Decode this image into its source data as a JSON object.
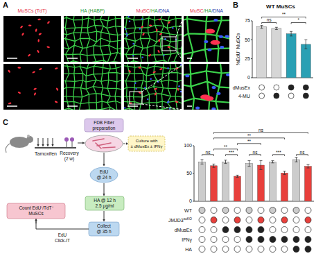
{
  "panels": {
    "a": "A",
    "b": "B",
    "c": "C"
  },
  "panel_a": {
    "headers": [
      [
        {
          "text": "MuSCs (TdT)",
          "color": "#e8304a"
        }
      ],
      [
        {
          "text": "HA (HABP)",
          "color": "#2e9e3a"
        }
      ],
      [
        {
          "text": "MuSC",
          "color": "#e8304a"
        },
        {
          "text": "/HA",
          "color": "#2e9e3a"
        },
        {
          "text": "/DNA",
          "color": "#2a3fb0"
        }
      ],
      [
        {
          "text": "MuSC",
          "color": "#e8304a"
        },
        {
          "text": "/HA",
          "color": "#2e9e3a"
        },
        {
          "text": "/DNA",
          "color": "#2a3fb0"
        }
      ]
    ]
  },
  "chart_data": [
    {
      "type": "bar",
      "title": "WT MuSCs",
      "y_label": "%EdU⁺ MuSCs",
      "categories": [
        null,
        null,
        null,
        null
      ],
      "values": [
        67,
        65,
        58,
        44
      ],
      "errors": [
        2,
        1.5,
        3,
        6
      ],
      "colors": [
        "#d6d6d6",
        "#d6d6d6",
        "#2aa0b4",
        "#2aa0b4"
      ],
      "ylim": [
        0,
        75
      ],
      "yticks": [
        0,
        25,
        50,
        75
      ],
      "comparisons": [
        {
          "from": 0,
          "to": 1,
          "label": "ns"
        },
        {
          "from": 2,
          "to": 3,
          "label": "*"
        },
        {
          "from": 0,
          "to": 3,
          "label": "**"
        }
      ],
      "conditions": [
        {
          "label": [
            {
              "text": "dMusEx"
            }
          ],
          "color": "#222222",
          "values": [
            false,
            false,
            true,
            true
          ]
        },
        {
          "label": [
            {
              "text": "4-MU"
            }
          ],
          "color": "#222222",
          "values": [
            false,
            true,
            false,
            true
          ]
        }
      ]
    },
    {
      "type": "bar",
      "categories": [
        null,
        null,
        null,
        null,
        null,
        null,
        null,
        null,
        null,
        null
      ],
      "values": [
        71,
        64,
        71,
        45,
        68,
        65,
        71,
        51,
        75,
        63
      ],
      "errors": [
        4,
        3,
        3,
        2,
        5,
        8,
        2,
        3,
        4,
        3
      ],
      "colors": [
        "#cccccc",
        "#e8403c",
        "#cccccc",
        "#e8403c",
        "#cccccc",
        "#e8403c",
        "#cccccc",
        "#e8403c",
        "#cccccc",
        "#e8403c"
      ],
      "ylim": [
        0,
        100
      ],
      "yticks": [
        0,
        50,
        100
      ],
      "comparisons": [
        {
          "from": 0,
          "to": 1,
          "label": "ns"
        },
        {
          "from": 2,
          "to": 3,
          "label": "***"
        },
        {
          "from": 4,
          "to": 5,
          "label": "ns"
        },
        {
          "from": 6,
          "to": 7,
          "label": "***"
        },
        {
          "from": 8,
          "to": 9,
          "label": "ns"
        },
        {
          "from": 1,
          "to": 3,
          "label": "**"
        },
        {
          "from": 3,
          "to": 5,
          "label": "**"
        },
        {
          "from": 1,
          "to": 7,
          "label": "**"
        },
        {
          "from": 1,
          "to": 9,
          "label": "ns"
        }
      ],
      "conditions": [
        {
          "label": [
            {
              "text": "WT"
            }
          ],
          "color": "#cccccc",
          "values": [
            true,
            false,
            true,
            false,
            true,
            false,
            true,
            false,
            true,
            false
          ]
        },
        {
          "label": [
            {
              "text": "JMJD3"
            },
            {
              "text": "scKO",
              "sup": true
            }
          ],
          "color": "#e8403c",
          "values": [
            false,
            true,
            false,
            true,
            false,
            true,
            false,
            true,
            false,
            true
          ]
        },
        {
          "label": [
            {
              "text": "dMusEx"
            }
          ],
          "color": "#222222",
          "values": [
            false,
            false,
            true,
            true,
            true,
            true,
            false,
            false,
            false,
            false
          ]
        },
        {
          "label": [
            {
              "text": "IFNγ"
            }
          ],
          "color": "#222222",
          "values": [
            false,
            false,
            false,
            false,
            true,
            true,
            true,
            true,
            true,
            true
          ]
        },
        {
          "label": [
            {
              "text": "HA"
            }
          ],
          "color": "#222222",
          "values": [
            false,
            false,
            false,
            false,
            false,
            false,
            false,
            false,
            true,
            true
          ]
        }
      ]
    }
  ],
  "schematic": {
    "tamoxifen": "Tamoxifen",
    "recovery": [
      "Recovery",
      "(2 w)"
    ],
    "fiber": [
      "FDB Fiber",
      "preparation"
    ],
    "culture": [
      "Culture with",
      "± dMusEx ± IFNγ"
    ],
    "edu": [
      "EdU",
      "@ 24 h"
    ],
    "ha": [
      "HA @ 12 h",
      "2.5 μg/ml"
    ],
    "collect": [
      "Collect",
      "@ 35 h"
    ],
    "count": [
      "Count EdU⁺/TdT⁺",
      "MuSCs"
    ],
    "click": [
      "EdU",
      "Click-IT"
    ]
  }
}
